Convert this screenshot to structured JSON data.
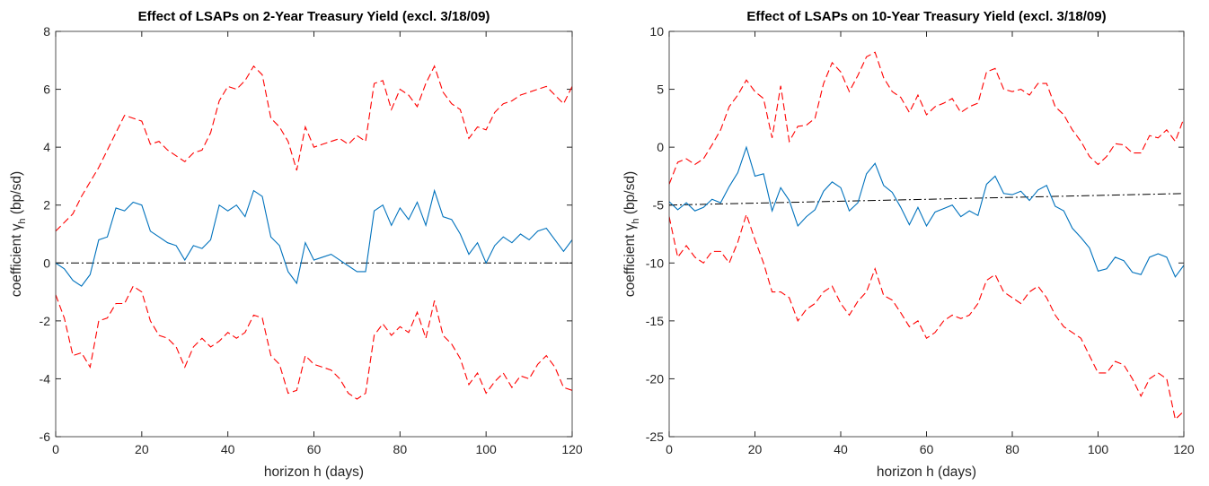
{
  "chart_data": [
    {
      "type": "line",
      "title": "Effect of LSAPs on 2-Year Treasury Yield (excl. 3/18/09)",
      "xlabel": "horizon h (days)",
      "ylabel": {
        "text": "coefficient γ",
        "subscript": "h",
        "suffix": " (bp/sd)"
      },
      "x": [
        0,
        2,
        4,
        6,
        8,
        10,
        12,
        14,
        16,
        18,
        20,
        22,
        24,
        26,
        28,
        30,
        32,
        34,
        36,
        38,
        40,
        42,
        44,
        46,
        48,
        50,
        52,
        54,
        56,
        58,
        60,
        62,
        64,
        66,
        68,
        70,
        72,
        74,
        76,
        78,
        80,
        82,
        84,
        86,
        88,
        90,
        92,
        94,
        96,
        98,
        100,
        102,
        104,
        106,
        108,
        110,
        112,
        114,
        116,
        118,
        120
      ],
      "series": [
        {
          "color": "#0072bd",
          "dash": "solid",
          "values": [
            0,
            -0.2,
            -0.6,
            -0.8,
            -0.4,
            0.8,
            0.9,
            1.9,
            1.8,
            2.1,
            2.0,
            1.1,
            0.9,
            0.7,
            0.6,
            0.1,
            0.6,
            0.5,
            0.8,
            2.0,
            1.8,
            2.0,
            1.6,
            2.5,
            2.3,
            0.9,
            0.6,
            -0.3,
            -0.7,
            0.7,
            0.1,
            0.2,
            0.3,
            0.1,
            -0.1,
            -0.3,
            -0.3,
            1.8,
            2.0,
            1.3,
            1.9,
            1.5,
            2.1,
            1.3,
            2.5,
            1.6,
            1.5,
            1.0,
            0.3,
            0.7,
            0.0,
            0.6,
            0.9,
            0.7,
            1.0,
            0.8,
            1.1,
            1.2,
            0.8,
            0.4,
            0.8
          ]
        },
        {
          "color": "#ff0000",
          "dash": "dashed",
          "values": [
            1.1,
            1.4,
            1.7,
            2.3,
            2.8,
            3.3,
            3.9,
            4.5,
            5.1,
            5.0,
            4.9,
            4.1,
            4.2,
            3.9,
            3.7,
            3.5,
            3.8,
            3.9,
            4.5,
            5.6,
            6.1,
            6.0,
            6.3,
            6.8,
            6.5,
            5.0,
            4.7,
            4.2,
            3.2,
            4.7,
            4.0,
            4.1,
            4.2,
            4.3,
            4.1,
            4.4,
            4.2,
            6.2,
            6.3,
            5.3,
            6.0,
            5.8,
            5.4,
            6.2,
            6.8,
            5.9,
            5.5,
            5.3,
            4.3,
            4.7,
            4.6,
            5.2,
            5.5,
            5.6,
            5.8,
            5.9,
            6.0,
            6.1,
            5.8,
            5.5,
            6.1
          ]
        },
        {
          "color": "#ff0000",
          "dash": "dashed",
          "values": [
            -1.1,
            -1.9,
            -3.2,
            -3.1,
            -3.6,
            -2.0,
            -1.9,
            -1.4,
            -1.4,
            -0.8,
            -1.0,
            -2.0,
            -2.5,
            -2.6,
            -2.9,
            -3.6,
            -2.9,
            -2.6,
            -2.9,
            -2.7,
            -2.4,
            -2.6,
            -2.4,
            -1.8,
            -1.9,
            -3.2,
            -3.5,
            -4.5,
            -4.4,
            -3.2,
            -3.5,
            -3.6,
            -3.7,
            -4.0,
            -4.5,
            -4.7,
            -4.5,
            -2.5,
            -2.1,
            -2.5,
            -2.2,
            -2.4,
            -1.7,
            -2.6,
            -1.3,
            -2.5,
            -2.8,
            -3.3,
            -4.2,
            -3.8,
            -4.5,
            -4.1,
            -3.8,
            -4.3,
            -3.9,
            -4.0,
            -3.5,
            -3.2,
            -3.6,
            -4.3,
            -4.4
          ]
        }
      ],
      "reference_line": {
        "x": [
          0,
          120
        ],
        "values": [
          0,
          0
        ],
        "color": "#000000",
        "dash": "dashdot"
      },
      "xlim": [
        0,
        120
      ],
      "xticks": [
        0,
        20,
        40,
        60,
        80,
        100,
        120
      ],
      "ylim": [
        -6,
        8
      ],
      "yticks": [
        -6,
        -4,
        -2,
        0,
        2,
        4,
        6,
        8
      ]
    },
    {
      "type": "line",
      "title": "Effect of LSAPs on 10-Year Treasury Yield (excl. 3/18/09)",
      "xlabel": "horizon h (days)",
      "ylabel": {
        "text": "coefficient γ",
        "subscript": "h",
        "suffix": " (bp/sd)"
      },
      "x": [
        0,
        2,
        4,
        6,
        8,
        10,
        12,
        14,
        16,
        18,
        20,
        22,
        24,
        26,
        28,
        30,
        32,
        34,
        36,
        38,
        40,
        42,
        44,
        46,
        48,
        50,
        52,
        54,
        56,
        58,
        60,
        62,
        64,
        66,
        68,
        70,
        72,
        74,
        76,
        78,
        80,
        82,
        84,
        86,
        88,
        90,
        92,
        94,
        96,
        98,
        100,
        102,
        104,
        106,
        108,
        110,
        112,
        114,
        116,
        118,
        120
      ],
      "series": [
        {
          "color": "#0072bd",
          "dash": "solid",
          "values": [
            -4.7,
            -5.4,
            -4.8,
            -5.5,
            -5.2,
            -4.5,
            -4.8,
            -3.4,
            -2.2,
            0.0,
            -2.5,
            -2.3,
            -5.5,
            -3.5,
            -4.6,
            -6.8,
            -6.0,
            -5.4,
            -3.8,
            -3.0,
            -3.5,
            -5.5,
            -4.8,
            -2.3,
            -1.4,
            -3.3,
            -3.9,
            -5.2,
            -6.7,
            -5.2,
            -6.8,
            -5.6,
            -5.3,
            -5.0,
            -6.0,
            -5.5,
            -5.9,
            -3.2,
            -2.5,
            -4.0,
            -4.1,
            -3.8,
            -4.6,
            -3.7,
            -3.3,
            -5.1,
            -5.5,
            -7.0,
            -7.8,
            -8.7,
            -10.7,
            -10.5,
            -9.5,
            -9.8,
            -10.8,
            -11.0,
            -9.5,
            -9.2,
            -9.5,
            -11.2,
            -10.2
          ]
        },
        {
          "color": "#ff0000",
          "dash": "dashed",
          "values": [
            -3.2,
            -1.3,
            -1.0,
            -1.5,
            -1.0,
            0.2,
            1.5,
            3.5,
            4.5,
            5.8,
            4.8,
            4.2,
            0.8,
            5.3,
            0.5,
            1.8,
            1.9,
            2.5,
            5.5,
            7.3,
            6.5,
            4.8,
            6.2,
            7.8,
            8.2,
            6.0,
            4.8,
            4.3,
            3.0,
            4.5,
            2.8,
            3.5,
            3.8,
            4.2,
            3.0,
            3.5,
            3.8,
            6.5,
            6.8,
            5.0,
            4.8,
            5.0,
            4.5,
            5.5,
            5.5,
            3.5,
            2.8,
            1.5,
            0.5,
            -0.8,
            -1.5,
            -0.8,
            0.3,
            0.2,
            -0.5,
            -0.5,
            1.0,
            0.8,
            1.5,
            0.5,
            2.5
          ]
        },
        {
          "color": "#ff0000",
          "dash": "dashed",
          "values": [
            -6.0,
            -9.5,
            -8.5,
            -9.5,
            -10.0,
            -9.0,
            -9.0,
            -10.0,
            -8.2,
            -5.8,
            -8.0,
            -10.0,
            -12.5,
            -12.5,
            -13.0,
            -15.0,
            -14.0,
            -13.5,
            -12.5,
            -12.0,
            -13.5,
            -14.5,
            -13.3,
            -12.5,
            -10.5,
            -12.8,
            -13.2,
            -14.3,
            -15.5,
            -15.0,
            -16.5,
            -16.0,
            -15.0,
            -14.5,
            -14.8,
            -14.5,
            -13.5,
            -11.5,
            -11.0,
            -12.5,
            -13.0,
            -13.5,
            -12.5,
            -12.0,
            -13.0,
            -14.5,
            -15.5,
            -16.0,
            -16.5,
            -18.0,
            -19.5,
            -19.5,
            -18.5,
            -18.8,
            -20.0,
            -21.5,
            -20.0,
            -19.5,
            -20.0,
            -23.5,
            -22.8
          ]
        }
      ],
      "reference_line": {
        "x": [
          0,
          120
        ],
        "values": [
          -5,
          -4
        ],
        "color": "#000000",
        "dash": "dashdot"
      },
      "xlim": [
        0,
        120
      ],
      "xticks": [
        0,
        20,
        40,
        60,
        80,
        100,
        120
      ],
      "ylim": [
        -25,
        10
      ],
      "yticks": [
        -25,
        -20,
        -15,
        -10,
        -5,
        0,
        5,
        10
      ]
    }
  ]
}
